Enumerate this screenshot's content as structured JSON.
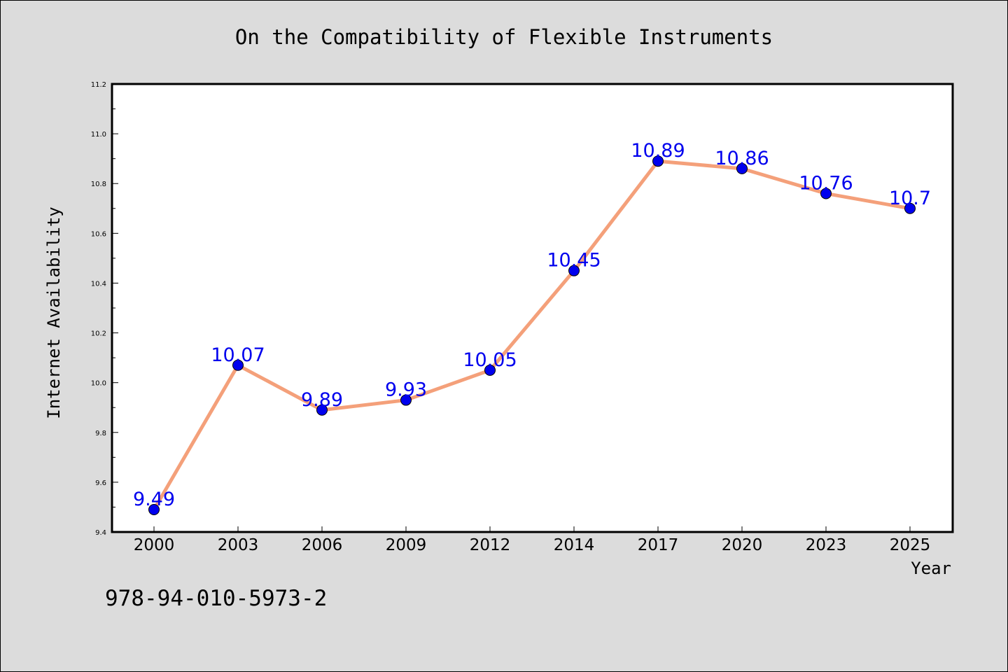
{
  "chart_data": {
    "type": "line",
    "title": "On the Compatibility of Flexible Instruments",
    "xlabel": "Year",
    "ylabel": "Internet Availability",
    "categories": [
      "2000",
      "2003",
      "2006",
      "2009",
      "2012",
      "2014",
      "2017",
      "2020",
      "2023",
      "2025"
    ],
    "series": [
      {
        "values": [
          9.49,
          10.07,
          9.89,
          9.93,
          10.05,
          10.45,
          10.89,
          10.86,
          10.76,
          10.7
        ],
        "labels": [
          "9.49",
          "10.07",
          "9.89",
          "9.93",
          "10.05",
          "10.45",
          "10.89",
          "10.86",
          "10.76",
          "10.7"
        ],
        "line_color": "#f4a07a",
        "marker_color": "#0000ee",
        "label_color": "#0000ee"
      }
    ],
    "ylim": [
      9.4,
      11.2
    ],
    "yticks": [
      "9.4",
      "9.6",
      "9.8",
      "10.0",
      "10.2",
      "10.4",
      "10.6",
      "10.8",
      "11.0",
      "11.2"
    ],
    "grid": false,
    "legend": "none"
  },
  "footer_code": "978-94-010-5973-2"
}
